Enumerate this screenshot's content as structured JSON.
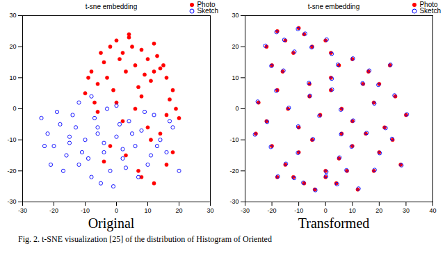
{
  "chart_data": [
    {
      "type": "scatter",
      "title": "t-sne embedding",
      "xlabel": "Original",
      "xlim": [
        -30,
        30
      ],
      "xticks": [
        -30,
        -20,
        -10,
        0,
        10,
        20,
        30
      ],
      "ylim": [
        -30,
        30
      ],
      "yticks": [
        -30,
        -20,
        -10,
        0,
        10,
        20,
        30
      ],
      "legend": "upper right",
      "series": [
        {
          "name": "Photo",
          "color": "#ff0000",
          "marker": "filled",
          "x": [
            -10,
            -8,
            -6,
            -4,
            -2,
            0,
            2,
            4,
            6,
            8,
            10,
            12,
            14,
            16,
            18,
            -7,
            -3,
            1,
            5,
            9,
            13,
            17,
            -5,
            -1,
            3,
            7,
            11,
            15,
            19,
            -9,
            0,
            4,
            8,
            12,
            16,
            6,
            2,
            10,
            -2,
            14,
            3,
            7,
            11,
            -4,
            18,
            20,
            8,
            12,
            16,
            -6
          ],
          "y": [
            5,
            12,
            8,
            15,
            20,
            22,
            18,
            24,
            14,
            19,
            16,
            21,
            13,
            10,
            6,
            2,
            10,
            16,
            20,
            11,
            17,
            3,
            18,
            6,
            12,
            7,
            9,
            14,
            0,
            10,
            2,
            23,
            4,
            12,
            -2,
            0,
            -4,
            -6,
            -12,
            -8,
            -15,
            -20,
            -10,
            -17,
            -14,
            -3,
            -22,
            -24,
            -18,
            -1
          ]
        },
        {
          "name": "Sketch",
          "color": "#0000ff",
          "marker": "open",
          "x": [
            -24,
            -22,
            -20,
            -18,
            -16,
            -14,
            -12,
            -10,
            -8,
            -6,
            -4,
            -2,
            0,
            2,
            4,
            6,
            8,
            10,
            12,
            14,
            16,
            18,
            20,
            -23,
            -19,
            -15,
            -11,
            -7,
            -3,
            1,
            5,
            9,
            13,
            17,
            -21,
            -17,
            -13,
            -9,
            -5,
            -1,
            3,
            7,
            11,
            -12,
            -8,
            -4,
            0,
            -15,
            -6,
            2
          ],
          "y": [
            -3,
            -8,
            -12,
            -5,
            -15,
            -2,
            -18,
            -10,
            -22,
            -6,
            -14,
            -20,
            -9,
            -16,
            -4,
            -12,
            -7,
            -18,
            -2,
            -10,
            -14,
            -6,
            -20,
            -12,
            -1,
            -9,
            -14,
            -3,
            0,
            -5,
            -8,
            -1,
            -12,
            -4,
            -18,
            -20,
            -6,
            -16,
            -24,
            -25,
            -19,
            -22,
            -15,
            2,
            4,
            -11,
            1,
            -11,
            -8,
            -13
          ]
        }
      ]
    },
    {
      "type": "scatter",
      "title": "t-sne embedding",
      "xlabel": "Transformed",
      "xlim": [
        -30,
        40
      ],
      "xticks": [
        -30,
        -20,
        -10,
        0,
        10,
        20,
        30,
        40
      ],
      "ylim": [
        -30,
        30
      ],
      "yticks": [
        -30,
        -20,
        -10,
        0,
        10,
        20,
        30
      ],
      "legend": "upper right",
      "series": [
        {
          "name": "Photo",
          "color": "#ff0000",
          "marker": "filled",
          "x": [
            -22,
            -18,
            -15,
            -12,
            -20,
            -16,
            -10,
            -8,
            -5,
            0,
            2,
            5,
            -25,
            -22,
            -18,
            -14,
            -10,
            -6,
            -2,
            2,
            6,
            10,
            14,
            18,
            22,
            26,
            30,
            -20,
            -15,
            -10,
            -5,
            0,
            5,
            10,
            15,
            20,
            25,
            28,
            -8,
            -4,
            0,
            4,
            8,
            12,
            -12,
            -6,
            2,
            6,
            16,
            20,
            24,
            -26,
            -18,
            10,
            18
          ],
          "y": [
            20,
            25,
            22,
            18,
            14,
            12,
            26,
            24,
            20,
            22,
            18,
            14,
            2,
            -4,
            6,
            0,
            -6,
            4,
            -2,
            6,
            0,
            -4,
            8,
            2,
            -6,
            4,
            -2,
            -12,
            -18,
            -14,
            -10,
            -20,
            -16,
            -12,
            -8,
            -14,
            -10,
            -18,
            -24,
            -26,
            -22,
            -24,
            -20,
            -26,
            -22,
            8,
            10,
            -8,
            12,
            8,
            14,
            -8,
            -22,
            16,
            -20
          ]
        },
        {
          "name": "Sketch",
          "color": "#0000ff",
          "marker": "open",
          "x": [
            -22.5,
            -18.3,
            -15.4,
            -11.6,
            -20.2,
            -15.7,
            -10.3,
            -7.6,
            -5.2,
            0.4,
            2.3,
            4.6,
            -25.3,
            -21.8,
            -18.4,
            -13.7,
            -10.2,
            -5.8,
            -2.3,
            2.4,
            5.7,
            10.3,
            13.8,
            18.2,
            22.4,
            25.7,
            30.3,
            -20.4,
            -14.8,
            -10.3,
            -4.7,
            0.3,
            5.2,
            9.7,
            15.3,
            20.2,
            24.8,
            28.3,
            -8.3,
            -3.8,
            0.2,
            4.3,
            7.8,
            12.3,
            -11.7,
            -6.2,
            2.3,
            5.8,
            16.3,
            19.7,
            24.2,
            -26.3,
            -17.8,
            10.2,
            18.3
          ],
          "y": [
            20.3,
            24.7,
            22.2,
            18.4,
            13.8,
            12.3,
            25.7,
            24.2,
            19.8,
            22.3,
            17.7,
            14.2,
            2.3,
            -4.2,
            5.8,
            0.3,
            -5.7,
            4.2,
            -2.3,
            6.2,
            -0.3,
            -3.8,
            8.2,
            1.7,
            -6.2,
            4.3,
            -1.8,
            -12.3,
            -17.7,
            -14.2,
            -9.8,
            -20.3,
            -15.7,
            -12.2,
            -7.8,
            -14.3,
            -9.7,
            -18.2,
            -23.8,
            -26.2,
            -21.7,
            -24.3,
            -19.8,
            -25.7,
            -22.3,
            8.3,
            9.7,
            -8.2,
            12.3,
            7.7,
            14.2,
            -8.3,
            -21.8,
            16.2,
            -19.7
          ]
        }
      ]
    }
  ],
  "caption": "Fig. 2.   t-SNE visualization [25] of the distribution of Histogram of Oriented"
}
